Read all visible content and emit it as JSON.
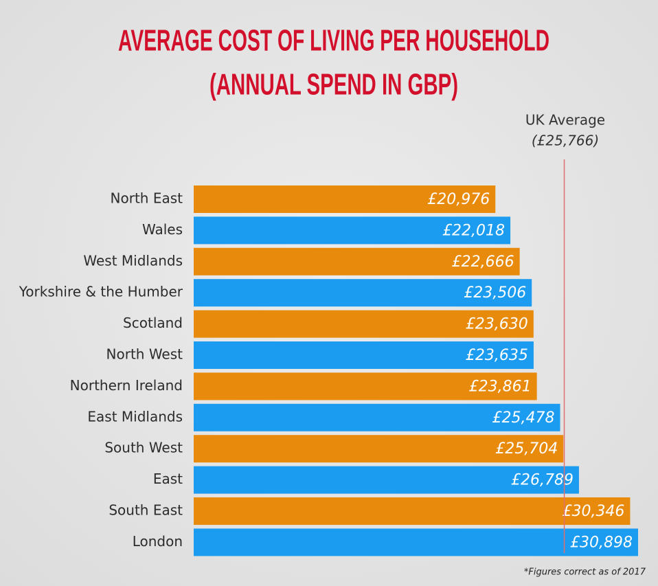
{
  "chart_data": {
    "type": "hbar",
    "title": "AVERAGE COST OF LIVING PER HOUSEHOLD",
    "subtitle": "(ANNUAL SPEND IN GBP)",
    "categories": [
      "North East",
      "Wales",
      "West Midlands",
      "Yorkshire & the Humber",
      "Scotland",
      "North West",
      "Northern Ireland",
      "East Midlands",
      "South West",
      "East",
      "South East",
      "London"
    ],
    "values": [
      20976,
      22018,
      22666,
      23506,
      23630,
      23635,
      23861,
      25478,
      25704,
      26789,
      30346,
      30898
    ],
    "value_labels": [
      "£20,976",
      "£22,018",
      "£22,666",
      "£23,506",
      "£23,630",
      "£23,635",
      "£23,861",
      "£25,478",
      "£25,704",
      "£26,789",
      "£30,346",
      "£30,898"
    ],
    "colors": [
      "#e88a0c",
      "#1b9cf0",
      "#e88a0c",
      "#1b9cf0",
      "#e88a0c",
      "#1b9cf0",
      "#e88a0c",
      "#1b9cf0",
      "#e88a0c",
      "#1b9cf0",
      "#e88a0c",
      "#1b9cf0"
    ],
    "reference_line": {
      "value": 25766,
      "label": "UK Average",
      "value_label": "(£25,766)",
      "color": "#e07070"
    },
    "footnote": "*Figures correct as of 2017"
  }
}
